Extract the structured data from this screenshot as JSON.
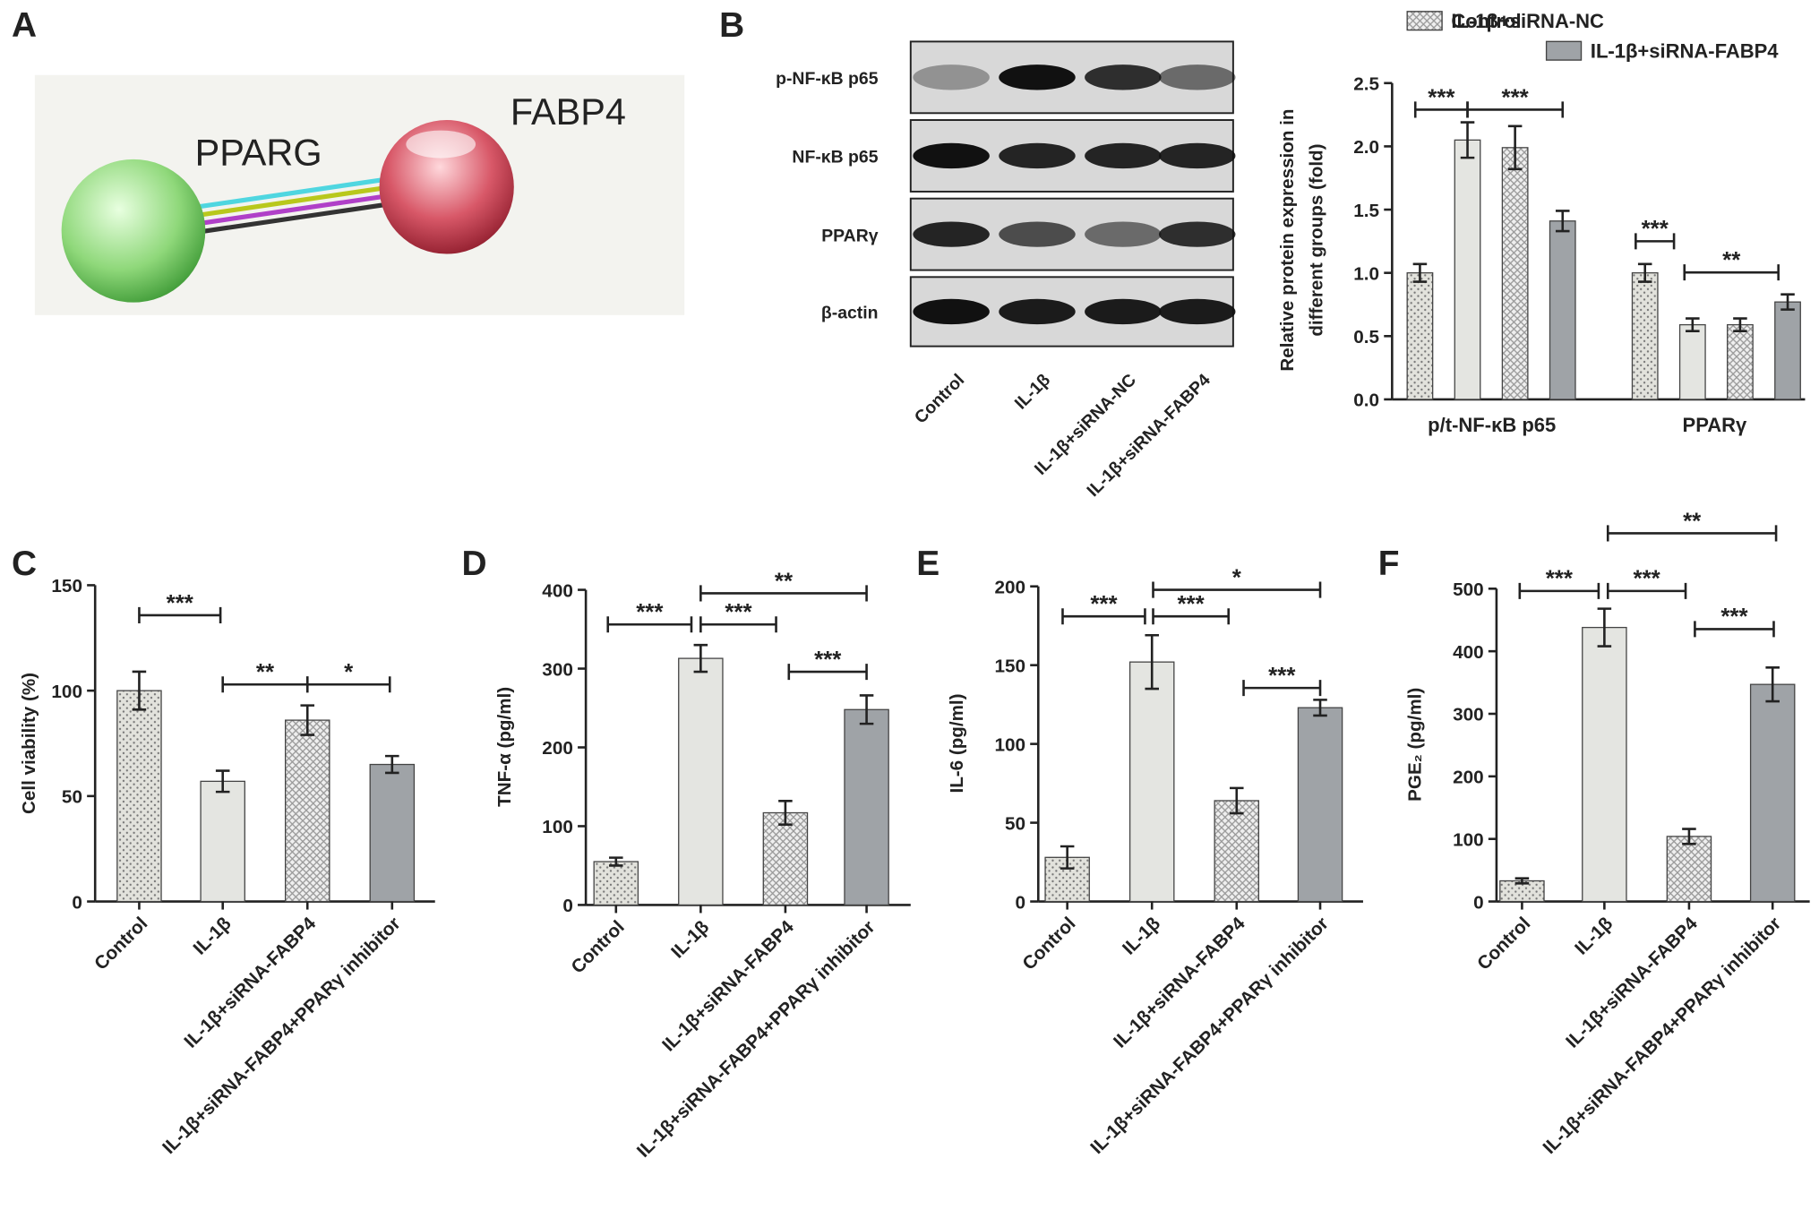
{
  "panel_labels": [
    "A",
    "B",
    "C",
    "D",
    "E",
    "F"
  ],
  "network": {
    "nodes": [
      {
        "label": "PPARG"
      },
      {
        "label": "FABP4"
      }
    ]
  },
  "blot": {
    "rows": [
      "p-NF-κB p65",
      "NF-κB p65",
      "PPARγ",
      "β-actin"
    ],
    "lanes": [
      "Control",
      "IL-1β",
      "IL-1β+siRNA-NC",
      "IL-1β+siRNA-FABP4"
    ]
  },
  "chart_data": [
    {
      "type": "bar",
      "categories": [
        "p/t-NF-κB p65",
        "PPARγ"
      ],
      "series": [
        {
          "name": "Control",
          "color": "#e2e2dc",
          "pattern": "dots",
          "values": [
            1.0,
            1.0
          ],
          "errors": [
            0.07,
            0.07
          ]
        },
        {
          "name": "IL-1β",
          "color": "#e4e5e1",
          "pattern": "none",
          "values": [
            2.05,
            0.59
          ],
          "errors": [
            0.14,
            0.05
          ]
        },
        {
          "name": "IL-1β+siRNA-NC",
          "color": "#efefef",
          "pattern": "checker",
          "values": [
            1.99,
            0.59
          ],
          "errors": [
            0.17,
            0.05
          ]
        },
        {
          "name": "IL-1β+siRNA-FABP4",
          "color": "#9fa3a7",
          "pattern": "none",
          "values": [
            1.41,
            0.77
          ],
          "errors": [
            0.08,
            0.06
          ]
        }
      ],
      "ylabel": [
        "Relative protein expression in",
        "different groups (fold)"
      ],
      "ylim": [
        0,
        2.5
      ],
      "yticks": [
        {
          "value": 0,
          "label": "0.0"
        },
        {
          "value": 0.5,
          "label": "0.5"
        },
        {
          "value": 1,
          "label": "1.0"
        },
        {
          "value": 1.5,
          "label": "1.5"
        },
        {
          "value": 2,
          "label": "2.0"
        },
        {
          "value": 2.5,
          "label": "2.5"
        }
      ],
      "annotations": [
        "***",
        "***",
        "***",
        "**"
      ]
    },
    {
      "type": "bar",
      "categories": [
        "Control",
        "IL-1β",
        "IL-1β+siRNA-FABP4",
        "IL-1β+siRNA-FABP4+PPARγ inhibitor"
      ],
      "values": [
        100,
        57,
        86,
        65
      ],
      "errors": [
        9,
        5,
        7,
        4
      ],
      "colors": [
        "#e2e2dc",
        "#e4e5e1",
        "#efefef",
        "#9fa3a7"
      ],
      "patterns": [
        "dots",
        "none",
        "checker",
        "none"
      ],
      "ylabel": "Cell viability (%)",
      "ylim": [
        0,
        150
      ],
      "yticks": [
        0,
        50,
        100,
        150
      ],
      "annotations": [
        "***",
        "**",
        "*"
      ]
    },
    {
      "type": "bar",
      "categories": [
        "Control",
        "IL-1β",
        "IL-1β+siRNA-FABP4",
        "IL-1β+siRNA-FABP4+PPARγ inhibitor"
      ],
      "values": [
        55,
        313,
        117,
        248
      ],
      "errors": [
        5,
        17,
        15,
        18
      ],
      "colors": [
        "#e2e2dc",
        "#e4e5e1",
        "#efefef",
        "#9fa3a7"
      ],
      "patterns": [
        "dots",
        "none",
        "checker",
        "none"
      ],
      "ylabel": "TNF-α (pg/ml)",
      "ylim": [
        0,
        400
      ],
      "yticks": [
        0,
        100,
        200,
        300,
        400
      ],
      "annotations": [
        "***",
        "***",
        "**",
        "***"
      ]
    },
    {
      "type": "bar",
      "categories": [
        "Control",
        "IL-1β",
        "IL-1β+siRNA-FABP4",
        "IL-1β+siRNA-FABP4+PPARγ inhibitor"
      ],
      "values": [
        28,
        152,
        64,
        123
      ],
      "errors": [
        7,
        17,
        8,
        5
      ],
      "colors": [
        "#e2e2dc",
        "#e4e5e1",
        "#efefef",
        "#9fa3a7"
      ],
      "patterns": [
        "dots",
        "none",
        "checker",
        "none"
      ],
      "ylabel": "IL-6 (pg/ml)",
      "ylim": [
        0,
        200
      ],
      "yticks": [
        0,
        50,
        100,
        150,
        200
      ],
      "annotations": [
        "***",
        "***",
        "*",
        "***"
      ]
    },
    {
      "type": "bar",
      "categories": [
        "Control",
        "IL-1β",
        "IL-1β+siRNA-FABP4",
        "IL-1β+siRNA-FABP4+PPARγ inhibitor"
      ],
      "values": [
        33,
        438,
        104,
        347
      ],
      "errors": [
        4,
        30,
        12,
        27
      ],
      "colors": [
        "#e2e2dc",
        "#e4e5e1",
        "#efefef",
        "#9fa3a7"
      ],
      "patterns": [
        "dots",
        "none",
        "checker",
        "none"
      ],
      "ylabel": "PGE₂ (pg/ml)",
      "ylim": [
        0,
        500
      ],
      "yticks": [
        0,
        100,
        200,
        300,
        400,
        500
      ],
      "annotations": [
        "***",
        "***",
        "**",
        "***"
      ]
    }
  ]
}
